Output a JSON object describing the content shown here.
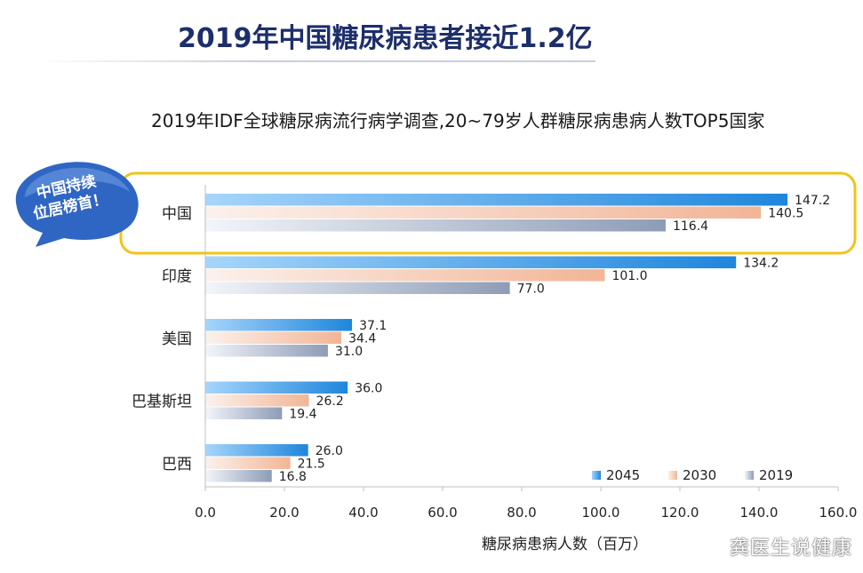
{
  "title": "2019年中国糖尿病患者接近1.2亿",
  "subtitle": "2019年IDF全球糖尿病流行病学调查,20~79岁人群糖尿病患病人数TOP5国家",
  "badge": {
    "line1": "中国持续",
    "line2": "位居榜首！",
    "color": "#2f66c4"
  },
  "watermark": "龚医生说健康",
  "colors": {
    "s2045": "#1f86dc",
    "s2030": "#f2b596",
    "s2019": "#8e9cb6",
    "highlight": "#f0c419",
    "axis": "#bfbfbf"
  },
  "chart_data": {
    "type": "bar",
    "orientation": "horizontal",
    "categories": [
      "中国",
      "印度",
      "美国",
      "巴基斯坦",
      "巴西"
    ],
    "series": [
      {
        "name": "2045",
        "values": [
          147.2,
          134.2,
          37.1,
          36.0,
          26.0
        ]
      },
      {
        "name": "2030",
        "values": [
          140.5,
          101.0,
          34.4,
          26.2,
          21.5
        ]
      },
      {
        "name": "2019",
        "values": [
          116.4,
          77.0,
          31.0,
          19.4,
          16.8
        ]
      }
    ],
    "xlabel": "糖尿病患病人数（百万）",
    "xlim": [
      0,
      160
    ],
    "xticks": [
      "0.0",
      "20.0",
      "40.0",
      "60.0",
      "80.0",
      "100.0",
      "120.0",
      "140.0",
      "160.0"
    ],
    "value_labels": [
      [
        "147.2",
        "134.2",
        "37.1",
        "36.0",
        "26.0"
      ],
      [
        "140.5",
        "101.0",
        "34.4",
        "26.2",
        "21.5"
      ],
      [
        "116.4",
        "77.0",
        "31.0",
        "19.4",
        "16.8"
      ]
    ],
    "legend": "bottom-right",
    "grid": false,
    "highlighted_category": "中国"
  }
}
